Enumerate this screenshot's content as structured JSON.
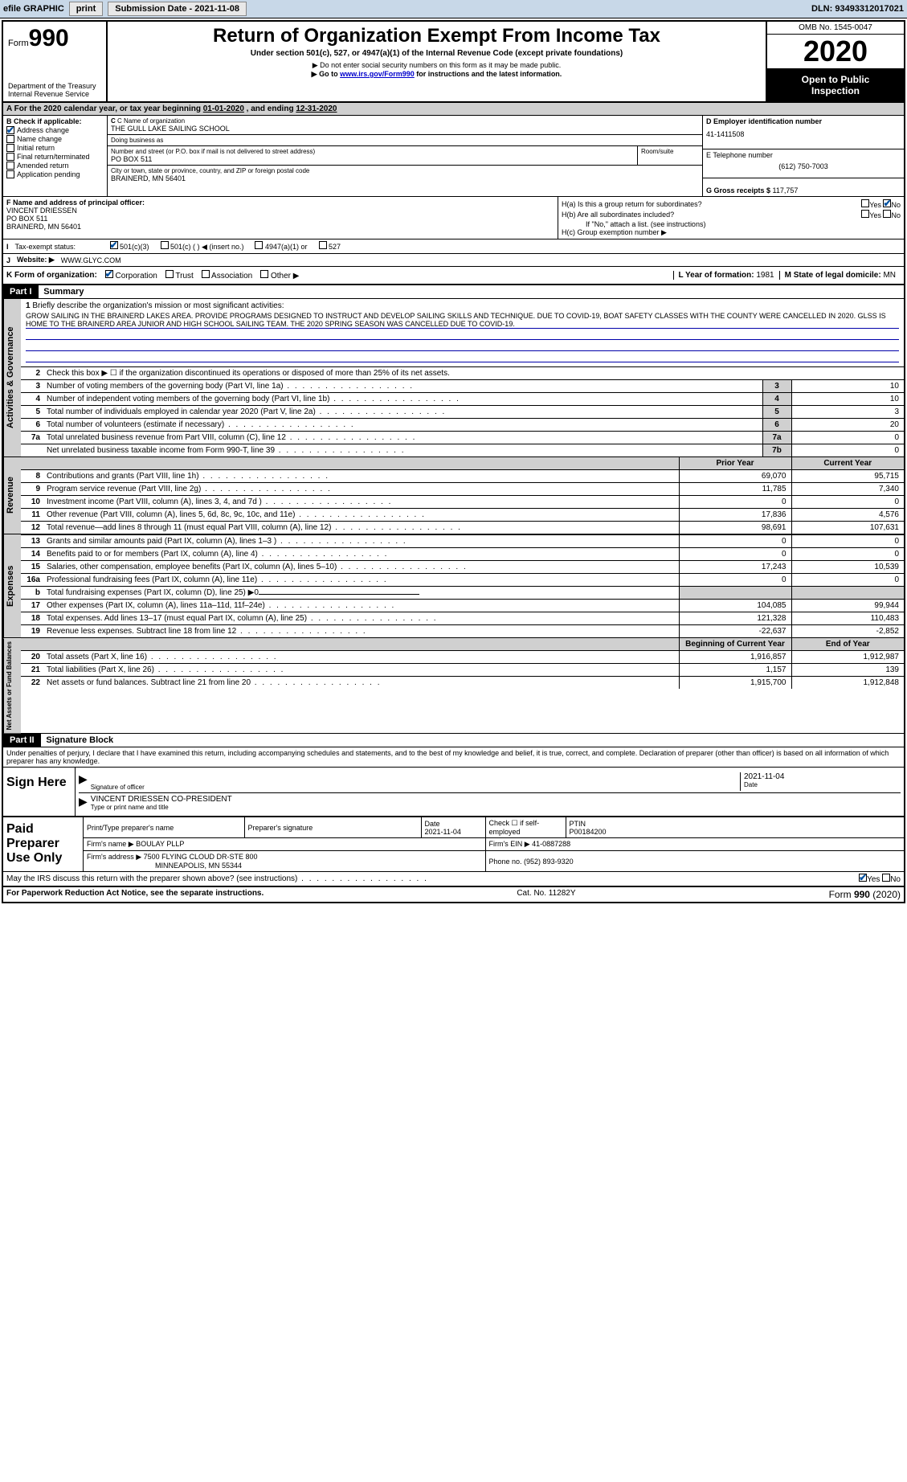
{
  "toolbar": {
    "efile": "efile GRAPHIC",
    "print": "print",
    "subdate_label": "Submission Date - ",
    "subdate": "2021-11-08",
    "dln_label": "DLN: ",
    "dln": "93493312017021"
  },
  "header": {
    "form_label": "Form",
    "form_no": "990",
    "title": "Return of Organization Exempt From Income Tax",
    "subtitle": "Under section 501(c), 527, or 4947(a)(1) of the Internal Revenue Code (except private foundations)",
    "note1": "▶ Do not enter social security numbers on this form as it may be made public.",
    "note2_pre": "▶ Go to ",
    "note2_link": "www.irs.gov/Form990",
    "note2_post": " for instructions and the latest information.",
    "dept": "Department of the Treasury",
    "irs": "Internal Revenue Service",
    "omb": "OMB No. 1545-0047",
    "year": "2020",
    "openpub1": "Open to Public",
    "openpub2": "Inspection"
  },
  "A": {
    "text": "For the 2020 calendar year, or tax year beginning ",
    "begin": "01-01-2020",
    "mid": " , and ending ",
    "end": "12-31-2020"
  },
  "B": {
    "label": "B Check if applicable:",
    "items": [
      {
        "label": "Address change",
        "checked": true
      },
      {
        "label": "Name change",
        "checked": false
      },
      {
        "label": "Initial return",
        "checked": false
      },
      {
        "label": "Final return/terminated",
        "checked": false
      },
      {
        "label": "Amended return",
        "checked": false
      },
      {
        "label": "Application pending",
        "checked": false
      }
    ]
  },
  "C": {
    "name_label": "C Name of organization",
    "name": "THE GULL LAKE SAILING SCHOOL",
    "dba_label": "Doing business as",
    "dba": "",
    "street_label": "Number and street (or P.O. box if mail is not delivered to street address)",
    "room_label": "Room/suite",
    "street": "PO BOX 511",
    "city_label": "City or town, state or province, country, and ZIP or foreign postal code",
    "city": "BRAINERD, MN  56401"
  },
  "D": {
    "label": "D Employer identification number",
    "val": "41-1411508"
  },
  "E": {
    "label": "E Telephone number",
    "val": "(612) 750-7003"
  },
  "G": {
    "label": "G Gross receipts $ ",
    "val": "117,757"
  },
  "F": {
    "label": "F  Name and address of principal officer:",
    "name": "VINCENT DRIESSEN",
    "addr1": "PO BOX 511",
    "addr2": "BRAINERD, MN  56401"
  },
  "H": {
    "a": "H(a)  Is this a group return for subordinates?",
    "b": "H(b)  Are all subordinates included?",
    "bnote": "If \"No,\" attach a list. (see instructions)",
    "c": "H(c)  Group exemption number ▶",
    "yes": "Yes",
    "no": "No"
  },
  "I": {
    "label": "Tax-exempt status:",
    "opts": [
      "501(c)(3)",
      "501(c) (   ) ◀ (insert no.)",
      "4947(a)(1) or",
      "527"
    ],
    "checked": 0
  },
  "J": {
    "label": "Website: ▶",
    "val": "WWW.GLYC.COM"
  },
  "K": {
    "label": "K Form of organization:",
    "opts": [
      "Corporation",
      "Trust",
      "Association",
      "Other ▶"
    ],
    "checked": 0
  },
  "L": {
    "label": "L Year of formation: ",
    "val": "1981"
  },
  "M": {
    "label": "M State of legal domicile: ",
    "val": "MN"
  },
  "part1": {
    "bar": "Part I",
    "title": "Summary"
  },
  "vtabs": {
    "gov": "Activities & Governance",
    "rev": "Revenue",
    "exp": "Expenses",
    "net": "Net Assets or Fund Balances"
  },
  "p1": {
    "l1": "Briefly describe the organization's mission or most significant activities:",
    "mission": "GROW SAILING IN THE BRAINERD LAKES AREA. PROVIDE PROGRAMS DESIGNED TO INSTRUCT AND DEVELOP SAILING SKILLS AND TECHNIQUE. DUE TO COVID-19, BOAT SAFETY CLASSES WITH THE COUNTY WERE CANCELLED IN 2020. GLSS IS HOME TO THE BRAINERD AREA JUNIOR AND HIGH SCHOOL SAILING TEAM. THE 2020 SPRING SEASON WAS CANCELLED DUE TO COVID-19.",
    "l2": "Check this box ▶ ☐ if the organization discontinued its operations or disposed of more than 25% of its net assets.",
    "rows": [
      {
        "n": "3",
        "t": "Number of voting members of the governing body (Part VI, line 1a)",
        "c": "3",
        "v": "10"
      },
      {
        "n": "4",
        "t": "Number of independent voting members of the governing body (Part VI, line 1b)",
        "c": "4",
        "v": "10"
      },
      {
        "n": "5",
        "t": "Total number of individuals employed in calendar year 2020 (Part V, line 2a)",
        "c": "5",
        "v": "3"
      },
      {
        "n": "6",
        "t": "Total number of volunteers (estimate if necessary)",
        "c": "6",
        "v": "20"
      },
      {
        "n": "7a",
        "t": "Total unrelated business revenue from Part VIII, column (C), line 12",
        "c": "7a",
        "v": "0"
      },
      {
        "n": "",
        "t": "Net unrelated business taxable income from Form 990-T, line 39",
        "c": "7b",
        "v": "0"
      }
    ]
  },
  "colhdr": {
    "prior": "Prior Year",
    "curr": "Current Year",
    "boy": "Beginning of Current Year",
    "eoy": "End of Year"
  },
  "rev": [
    {
      "n": "8",
      "t": "Contributions and grants (Part VIII, line 1h)",
      "p": "69,070",
      "c": "95,715"
    },
    {
      "n": "9",
      "t": "Program service revenue (Part VIII, line 2g)",
      "p": "11,785",
      "c": "7,340"
    },
    {
      "n": "10",
      "t": "Investment income (Part VIII, column (A), lines 3, 4, and 7d )",
      "p": "0",
      "c": "0"
    },
    {
      "n": "11",
      "t": "Other revenue (Part VIII, column (A), lines 5, 6d, 8c, 9c, 10c, and 11e)",
      "p": "17,836",
      "c": "4,576"
    },
    {
      "n": "12",
      "t": "Total revenue—add lines 8 through 11 (must equal Part VIII, column (A), line 12)",
      "p": "98,691",
      "c": "107,631"
    }
  ],
  "exp": [
    {
      "n": "13",
      "t": "Grants and similar amounts paid (Part IX, column (A), lines 1–3 )",
      "p": "0",
      "c": "0"
    },
    {
      "n": "14",
      "t": "Benefits paid to or for members (Part IX, column (A), line 4)",
      "p": "0",
      "c": "0"
    },
    {
      "n": "15",
      "t": "Salaries, other compensation, employee benefits (Part IX, column (A), lines 5–10)",
      "p": "17,243",
      "c": "10,539"
    },
    {
      "n": "16a",
      "t": "Professional fundraising fees (Part IX, column (A), line 11e)",
      "p": "0",
      "c": "0"
    },
    {
      "n": "b",
      "t": "Total fundraising expenses (Part IX, column (D), line 25) ▶0",
      "p": "",
      "c": "",
      "shade": true
    },
    {
      "n": "17",
      "t": "Other expenses (Part IX, column (A), lines 11a–11d, 11f–24e)",
      "p": "104,085",
      "c": "99,944"
    },
    {
      "n": "18",
      "t": "Total expenses. Add lines 13–17 (must equal Part IX, column (A), line 25)",
      "p": "121,328",
      "c": "110,483"
    },
    {
      "n": "19",
      "t": "Revenue less expenses. Subtract line 18 from line 12",
      "p": "-22,637",
      "c": "-2,852"
    }
  ],
  "net": [
    {
      "n": "20",
      "t": "Total assets (Part X, line 16)",
      "p": "1,916,857",
      "c": "1,912,987"
    },
    {
      "n": "21",
      "t": "Total liabilities (Part X, line 26)",
      "p": "1,157",
      "c": "139"
    },
    {
      "n": "22",
      "t": "Net assets or fund balances. Subtract line 21 from line 20",
      "p": "1,915,700",
      "c": "1,912,848"
    }
  ],
  "part2": {
    "bar": "Part II",
    "title": "Signature Block"
  },
  "sig": {
    "decl": "Under penalties of perjury, I declare that I have examined this return, including accompanying schedules and statements, and to the best of my knowledge and belief, it is true, correct, and complete. Declaration of preparer (other than officer) is based on all information of which preparer has any knowledge.",
    "signhere": "Sign Here",
    "sigoff": "Signature of officer",
    "date": "Date",
    "sigdate": "2021-11-04",
    "name": "VINCENT DRIESSEN  CO-PRESIDENT",
    "nametitle": "Type or print name and title"
  },
  "paid": {
    "label": "Paid Preparer Use Only",
    "h1": "Print/Type preparer's name",
    "h2": "Preparer's signature",
    "h3": "Date",
    "h3v": "2021-11-04",
    "h4": "Check ☐ if self-employed",
    "h5": "PTIN",
    "h5v": "P00184200",
    "firm_label": "Firm's name    ▶ ",
    "firm": "BOULAY PLLP",
    "ein_label": "Firm's EIN ▶ ",
    "ein": "41-0887288",
    "addr_label": "Firm's address ▶ ",
    "addr1": "7500 FLYING CLOUD DR-STE 800",
    "addr2": "MINNEAPOLIS, MN  55344",
    "phone_label": "Phone no. ",
    "phone": "(952) 893-9320"
  },
  "may": {
    "q": "May the IRS discuss this return with the preparer shown above? (see instructions)",
    "yes": "Yes",
    "no": "No"
  },
  "footer": {
    "l": "For Paperwork Reduction Act Notice, see the separate instructions.",
    "m": "Cat. No. 11282Y",
    "r_pre": "Form ",
    "r_form": "990",
    "r_post": " (2020)"
  }
}
